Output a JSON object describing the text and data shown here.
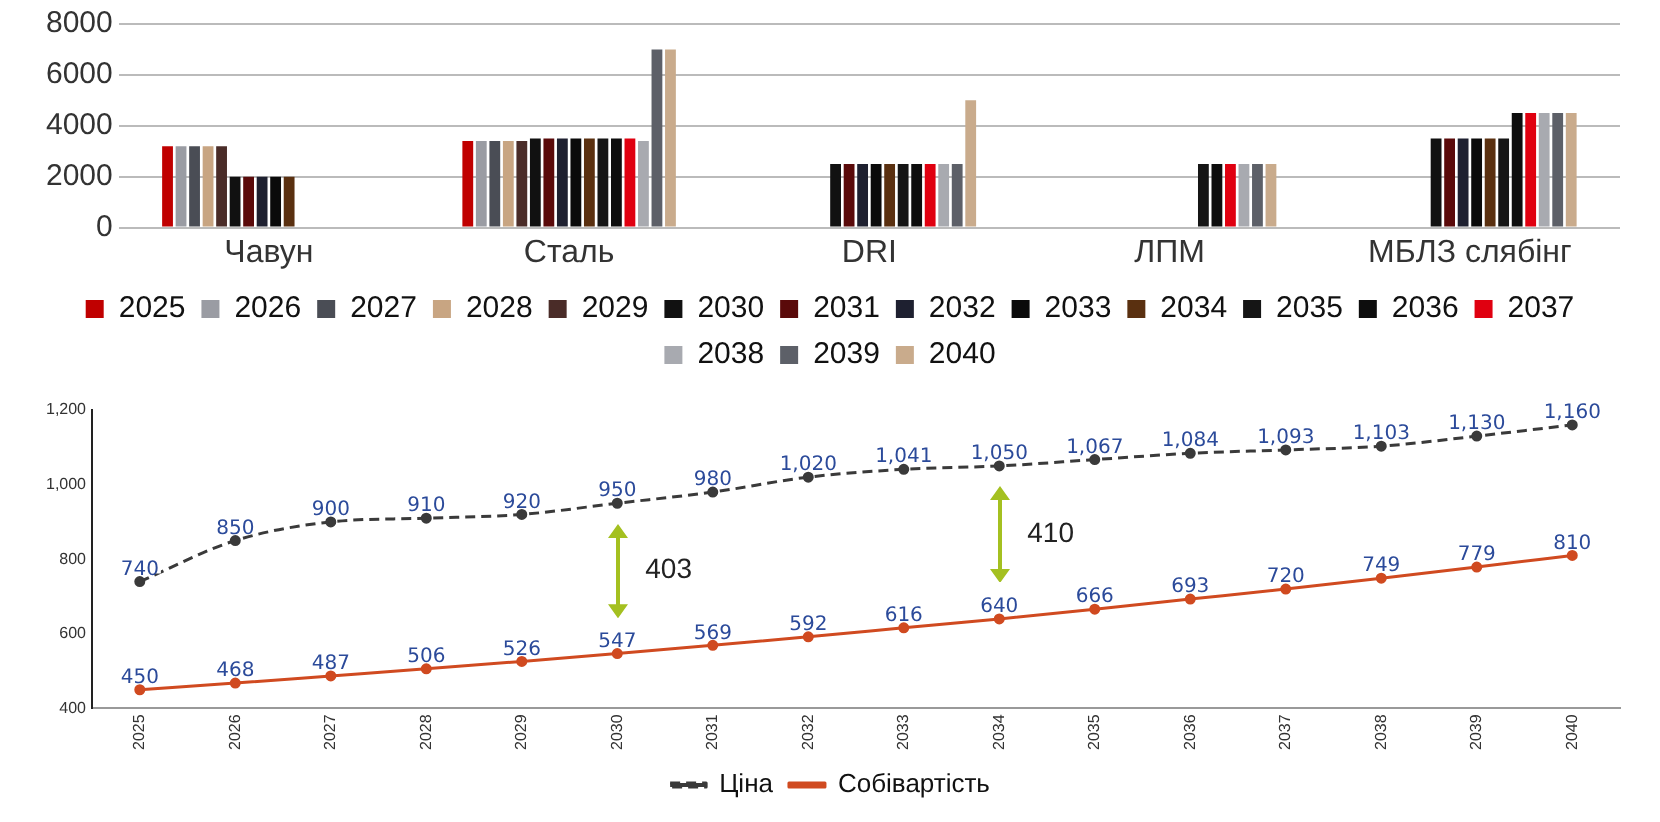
{
  "chart_data": [
    {
      "type": "bar",
      "categories": [
        "Чавун",
        "Сталь",
        "DRI",
        "ЛПМ",
        "МБЛЗ слябінг"
      ],
      "ylim": [
        0,
        8000
      ],
      "yticks": [
        0,
        2000,
        4000,
        6000,
        8000
      ],
      "grid": "y",
      "legend": "bottom",
      "series": [
        {
          "name": "2025",
          "color": "#c00000",
          "values": [
            3200,
            3400,
            null,
            null,
            null
          ]
        },
        {
          "name": "2026",
          "color": "#9a9ca3",
          "values": [
            3200,
            3400,
            null,
            null,
            null
          ]
        },
        {
          "name": "2027",
          "color": "#4a4d55",
          "values": [
            3200,
            3400,
            null,
            null,
            null
          ]
        },
        {
          "name": "2028",
          "color": "#c8a582",
          "values": [
            3200,
            3400,
            null,
            null,
            null
          ]
        },
        {
          "name": "2029",
          "color": "#4a2c28",
          "values": [
            3200,
            3400,
            null,
            null,
            null
          ]
        },
        {
          "name": "2030",
          "color": "#111111",
          "values": [
            2000,
            3500,
            2500,
            null,
            3500
          ]
        },
        {
          "name": "2031",
          "color": "#5a0a0a",
          "values": [
            2000,
            3500,
            2500,
            null,
            3500
          ]
        },
        {
          "name": "2032",
          "color": "#1e2030",
          "values": [
            2000,
            3500,
            2500,
            null,
            3500
          ]
        },
        {
          "name": "2033",
          "color": "#0a0a0a",
          "values": [
            2000,
            3500,
            2500,
            null,
            3500
          ]
        },
        {
          "name": "2034",
          "color": "#5a3010",
          "values": [
            2000,
            3500,
            2500,
            null,
            3500
          ]
        },
        {
          "name": "2035",
          "color": "#151515",
          "values": [
            null,
            3500,
            2500,
            2500,
            3500
          ]
        },
        {
          "name": "2036",
          "color": "#0d0d0d",
          "values": [
            null,
            3500,
            2500,
            2500,
            4500
          ]
        },
        {
          "name": "2037",
          "color": "#e00010",
          "values": [
            null,
            3500,
            2500,
            2500,
            4500
          ]
        },
        {
          "name": "2038",
          "color": "#a8aab0",
          "values": [
            null,
            3400,
            2500,
            2500,
            4500
          ]
        },
        {
          "name": "2039",
          "color": "#5d6068",
          "values": [
            null,
            7000,
            2500,
            2500,
            4500
          ]
        },
        {
          "name": "2040",
          "color": "#c9ab8c",
          "values": [
            null,
            7000,
            5000,
            2500,
            4500
          ]
        }
      ]
    },
    {
      "type": "line",
      "categories": [
        "2025",
        "2026",
        "2027",
        "2028",
        "2029",
        "2030",
        "2031",
        "2032",
        "2033",
        "2034",
        "2035",
        "2036",
        "2037",
        "2038",
        "2039",
        "2040"
      ],
      "ylim": [
        400,
        1200
      ],
      "yticks": [
        400,
        600,
        800,
        {
          "value": 1000,
          "label": "1,000"
        },
        {
          "value": 1200,
          "label": "1,200"
        }
      ],
      "grid": false,
      "legend": "bottom",
      "marker": "circle",
      "annotations": [
        "403",
        "410"
      ],
      "series": [
        {
          "name": "Ціна",
          "color": "#3a3a3a",
          "line_style": "dashed",
          "values": [
            740,
            850,
            900,
            910,
            920,
            950,
            980,
            1020,
            1041,
            1050,
            1067,
            1084,
            1093,
            1103,
            1130,
            1160
          ],
          "value_labels": [
            "740",
            "850",
            "900",
            "910",
            "920",
            "950",
            "980",
            "1,020",
            "1,041",
            "1,050",
            "1,067",
            "1,084",
            "1,093",
            "1,103",
            "1,130",
            "1,160"
          ]
        },
        {
          "name": "Собівартість",
          "color": "#d04a20",
          "values": [
            450,
            468,
            487,
            506,
            526,
            547,
            569,
            592,
            616,
            640,
            666,
            693,
            720,
            749,
            779,
            810
          ],
          "value_labels": [
            "450",
            "468",
            "487",
            "506",
            "526",
            "547",
            "569",
            "592",
            "616",
            "640",
            "666",
            "693",
            "720",
            "749",
            "779",
            "810"
          ]
        }
      ]
    }
  ]
}
